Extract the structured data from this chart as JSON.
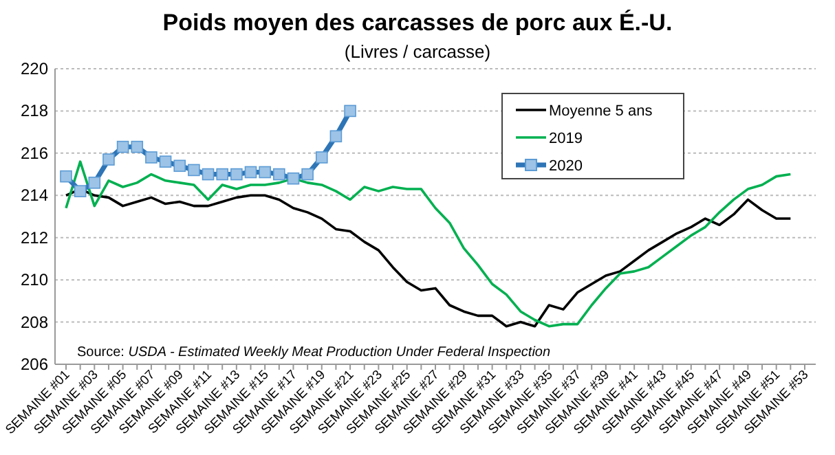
{
  "chart_data": {
    "type": "line",
    "title": "Poids moyen des carcasses de porc aux É.-U.",
    "subtitle": "(Livres / carcasse)",
    "categories": [
      "SEMAINE #01",
      null,
      "SEMAINE #03",
      null,
      "SEMAINE #05",
      null,
      "SEMAINE #07",
      null,
      "SEMAINE #09",
      null,
      "SEMAINE #11",
      null,
      "SEMAINE #13",
      null,
      "SEMAINE #15",
      null,
      "SEMAINE #17",
      null,
      "SEMAINE #19",
      null,
      "SEMAINE #21",
      null,
      "SEMAINE #23",
      null,
      "SEMAINE #25",
      null,
      "SEMAINE #27",
      null,
      "SEMAINE #29",
      null,
      "SEMAINE #31",
      null,
      "SEMAINE #33",
      null,
      "SEMAINE #35",
      null,
      "SEMAINE #37",
      null,
      "SEMAINE #39",
      null,
      "SEMAINE #41",
      null,
      "SEMAINE #43",
      null,
      "SEMAINE #45",
      null,
      "SEMAINE #47",
      null,
      "SEMAINE #49",
      null,
      "SEMAINE #51",
      null,
      "SEMAINE #53"
    ],
    "series": [
      {
        "name": "Moyenne 5 ans",
        "color": "#000000",
        "marker": "none",
        "values": [
          214.0,
          214.3,
          214.0,
          213.9,
          213.5,
          213.7,
          213.9,
          213.6,
          213.7,
          213.5,
          213.5,
          213.7,
          213.9,
          214.0,
          214.0,
          213.8,
          213.4,
          213.2,
          212.9,
          212.4,
          212.3,
          211.8,
          211.4,
          210.6,
          209.9,
          209.5,
          209.6,
          208.8,
          208.5,
          208.3,
          208.3,
          207.8,
          208.0,
          207.8,
          208.8,
          208.6,
          209.4,
          209.8,
          210.2,
          210.4,
          210.9,
          211.4,
          211.8,
          212.2,
          212.5,
          212.9,
          212.6,
          213.1,
          213.8,
          213.3,
          212.9,
          212.9,
          null
        ]
      },
      {
        "name": "2019",
        "color": "#00b050",
        "marker": "none",
        "values": [
          213.4,
          215.6,
          213.5,
          214.7,
          214.4,
          214.6,
          215.0,
          214.7,
          214.6,
          214.5,
          213.8,
          214.5,
          214.3,
          214.5,
          214.5,
          214.6,
          214.8,
          214.6,
          214.5,
          214.2,
          213.8,
          214.4,
          214.2,
          214.4,
          214.3,
          214.3,
          213.4,
          212.7,
          211.5,
          210.7,
          209.8,
          209.3,
          208.5,
          208.1,
          207.8,
          207.9,
          207.9,
          208.8,
          209.6,
          210.3,
          210.4,
          210.6,
          211.1,
          211.6,
          212.1,
          212.5,
          213.2,
          213.8,
          214.3,
          214.5,
          214.9,
          215.0,
          null
        ]
      },
      {
        "name": "2020",
        "color": "#2e75b6",
        "marker": "square",
        "values": [
          214.9,
          214.2,
          214.6,
          215.7,
          216.3,
          216.3,
          215.8,
          215.6,
          215.4,
          215.2,
          215.0,
          215.0,
          215.0,
          215.1,
          215.1,
          215.0,
          214.8,
          215.0,
          215.8,
          216.8,
          218.0,
          null,
          null,
          null,
          null,
          null,
          null,
          null,
          null,
          null,
          null,
          null,
          null,
          null,
          null,
          null,
          null,
          null,
          null,
          null,
          null,
          null,
          null,
          null,
          null,
          null,
          null,
          null,
          null,
          null,
          null,
          null,
          null
        ]
      }
    ],
    "ylim": [
      206,
      220
    ],
    "yticks": [
      206,
      208,
      210,
      212,
      214,
      216,
      218,
      220
    ],
    "grid": "y",
    "legend": "top right",
    "annotations": [
      "Source: USDA - Estimated Weekly Meat Production Under Federal Inspection"
    ]
  }
}
